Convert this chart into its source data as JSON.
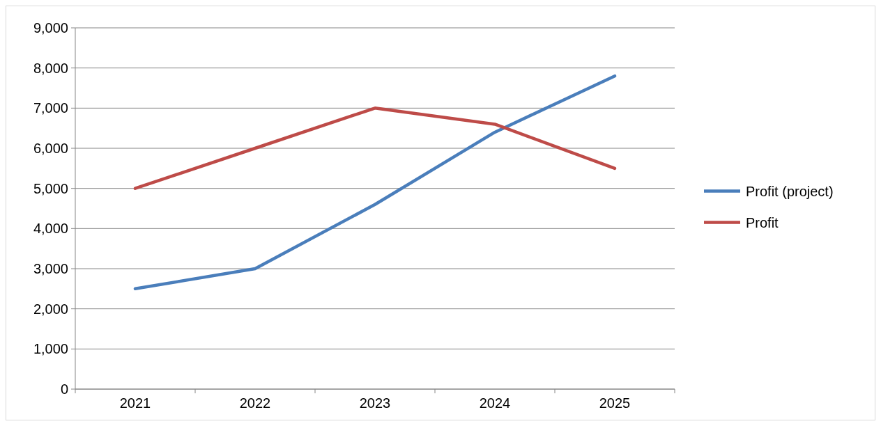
{
  "chart_data": {
    "type": "line",
    "categories": [
      "2021",
      "2022",
      "2023",
      "2024",
      "2025"
    ],
    "series": [
      {
        "name": "Profit (project)",
        "color": "#4a7ebb",
        "values": [
          2500,
          3000,
          4600,
          6400,
          7800
        ]
      },
      {
        "name": "Profit",
        "color": "#be4b48",
        "values": [
          5000,
          6000,
          7000,
          6600,
          5500
        ]
      }
    ],
    "ylim": [
      0,
      9000
    ],
    "yticks": [
      {
        "value": 0,
        "label": "0"
      },
      {
        "value": 1000,
        "label": "1,000"
      },
      {
        "value": 2000,
        "label": "2,000"
      },
      {
        "value": 3000,
        "label": "3,000"
      },
      {
        "value": 4000,
        "label": "4,000"
      },
      {
        "value": 5000,
        "label": "5,000"
      },
      {
        "value": 6000,
        "label": "6,000"
      },
      {
        "value": 7000,
        "label": "7,000"
      },
      {
        "value": 8000,
        "label": "8,000"
      },
      {
        "value": 9000,
        "label": "9,000"
      }
    ],
    "grid": "y",
    "legend": "right",
    "marker": "none",
    "line_style": "solid"
  }
}
